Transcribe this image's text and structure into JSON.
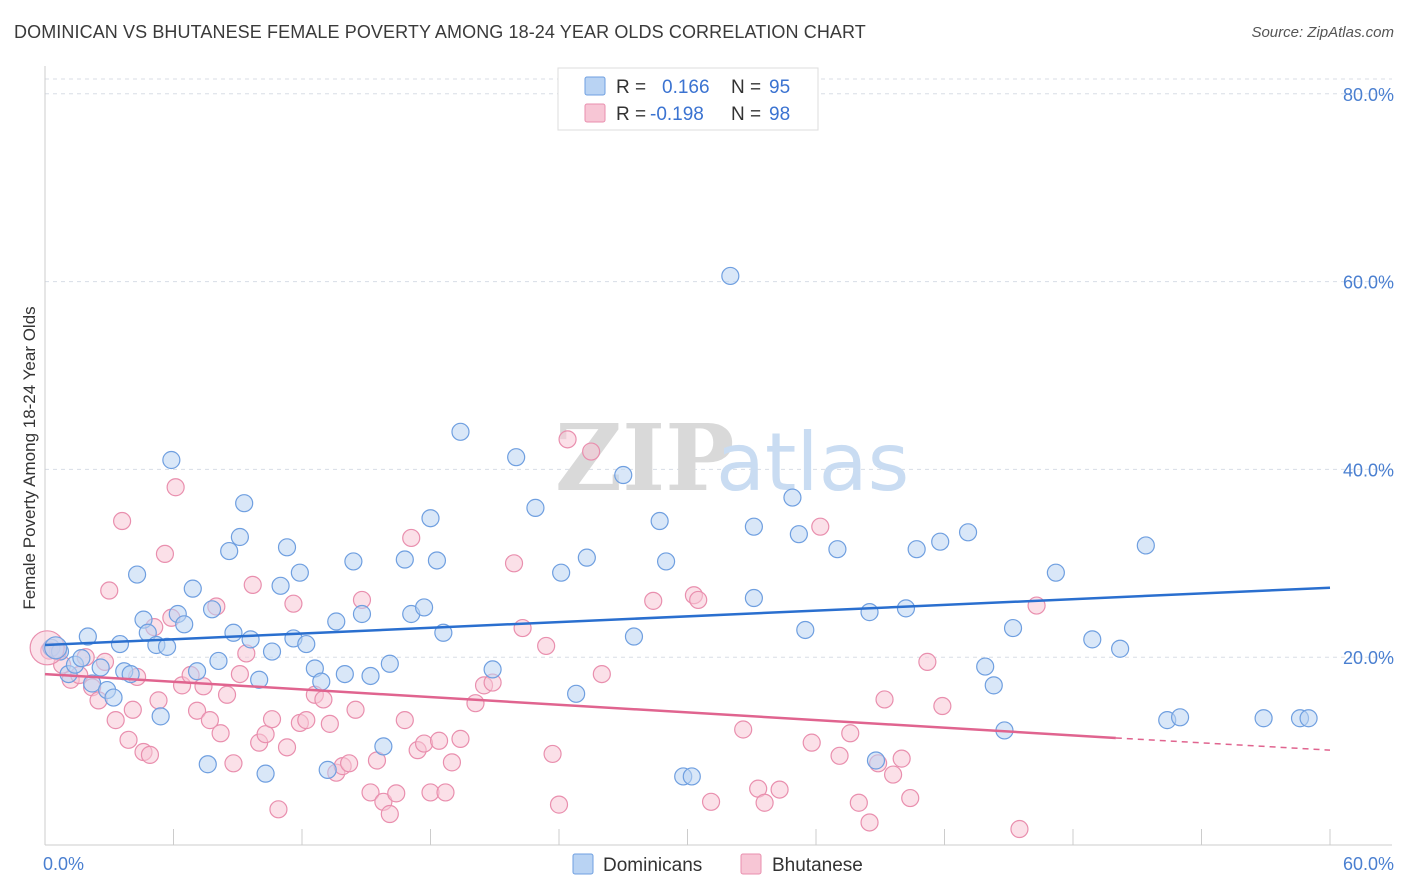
{
  "title": "DOMINICAN VS BHUTANESE FEMALE POVERTY AMONG 18-24 YEAR OLDS CORRELATION CHART",
  "source": "Source: ZipAtlas.com",
  "watermark": {
    "zip": "ZIP",
    "atlas": "atlas"
  },
  "legend": {
    "rows": [
      {
        "r_label": "R =",
        "r_value": "0.166",
        "n_label": "N =",
        "n_value": "95"
      },
      {
        "r_label": "R =",
        "r_value": "-0.198",
        "n_label": "N =",
        "n_value": "98"
      }
    ]
  },
  "bottom_legend": [
    "Dominicans",
    "Bhutanese"
  ],
  "colors": {
    "dominicans_fill": "#b9d3f3",
    "dominicans_stroke": "#6f9fe0",
    "dominicans_line": "#2a6fcf",
    "bhutanese_fill": "#f7c6d5",
    "bhutanese_stroke": "#e98fae",
    "bhutanese_line": "#e0648f",
    "tick_label": "#4a7fd0",
    "grid": "#d8dde6"
  },
  "chart_data": {
    "type": "scatter",
    "title": "DOMINICAN VS BHUTANESE FEMALE POVERTY AMONG 18-24 YEAR OLDS CORRELATION CHART",
    "xlabel": "",
    "ylabel": "Female Poverty Among 18-24 Year Olds",
    "xlim": [
      0,
      60
    ],
    "ylim": [
      0,
      82
    ],
    "x_tick_labels": [
      "0.0%",
      "60.0%"
    ],
    "y_tick_labels": [
      "20.0%",
      "40.0%",
      "60.0%",
      "80.0%"
    ],
    "y_ticks": [
      20,
      40,
      60,
      80
    ],
    "grid": true,
    "series": [
      {
        "name": "Dominicans",
        "r": 0.166,
        "n": 95,
        "trend": {
          "x": [
            0,
            60
          ],
          "y": [
            21.3,
            27.4
          ]
        },
        "points": [
          [
            0.3,
            21.0
          ],
          [
            0.7,
            20.6
          ],
          [
            1.1,
            18.2
          ],
          [
            1.4,
            19.2
          ],
          [
            1.7,
            19.9
          ],
          [
            2.0,
            22.2
          ],
          [
            2.2,
            17.2
          ],
          [
            2.6,
            18.9
          ],
          [
            2.9,
            16.5
          ],
          [
            3.2,
            15.7
          ],
          [
            3.5,
            21.4
          ],
          [
            3.7,
            18.5
          ],
          [
            4.0,
            18.2
          ],
          [
            4.3,
            28.8
          ],
          [
            4.6,
            24.0
          ],
          [
            4.8,
            22.6
          ],
          [
            5.2,
            21.3
          ],
          [
            5.4,
            13.7
          ],
          [
            5.7,
            21.1
          ],
          [
            5.9,
            41.0
          ],
          [
            6.2,
            24.6
          ],
          [
            6.5,
            23.5
          ],
          [
            6.9,
            27.3
          ],
          [
            7.1,
            18.5
          ],
          [
            7.6,
            8.6
          ],
          [
            7.8,
            25.1
          ],
          [
            8.1,
            19.6
          ],
          [
            8.6,
            31.3
          ],
          [
            8.8,
            22.6
          ],
          [
            9.1,
            32.8
          ],
          [
            9.3,
            36.4
          ],
          [
            9.6,
            21.9
          ],
          [
            10.0,
            17.6
          ],
          [
            10.3,
            7.6
          ],
          [
            10.6,
            20.6
          ],
          [
            11.0,
            27.6
          ],
          [
            11.3,
            31.7
          ],
          [
            11.6,
            22.0
          ],
          [
            11.9,
            29.0
          ],
          [
            12.2,
            21.4
          ],
          [
            12.6,
            18.8
          ],
          [
            12.9,
            17.4
          ],
          [
            13.2,
            8.0
          ],
          [
            13.6,
            23.8
          ],
          [
            14.0,
            18.2
          ],
          [
            14.4,
            30.2
          ],
          [
            14.8,
            24.6
          ],
          [
            15.2,
            18.0
          ],
          [
            15.8,
            10.5
          ],
          [
            16.1,
            19.3
          ],
          [
            16.8,
            30.4
          ],
          [
            17.1,
            24.6
          ],
          [
            17.7,
            25.3
          ],
          [
            18.0,
            34.8
          ],
          [
            18.3,
            30.3
          ],
          [
            18.6,
            22.6
          ],
          [
            19.4,
            44.0
          ],
          [
            20.9,
            18.7
          ],
          [
            22.0,
            41.3
          ],
          [
            22.9,
            35.9
          ],
          [
            24.1,
            29.0
          ],
          [
            24.8,
            16.1
          ],
          [
            25.3,
            30.6
          ],
          [
            27.0,
            39.4
          ],
          [
            27.5,
            22.2
          ],
          [
            28.7,
            34.5
          ],
          [
            29.0,
            30.2
          ],
          [
            29.8,
            7.3
          ],
          [
            30.2,
            7.3
          ],
          [
            32.0,
            60.6
          ],
          [
            33.1,
            33.9
          ],
          [
            33.1,
            26.3
          ],
          [
            34.9,
            37.0
          ],
          [
            35.2,
            33.1
          ],
          [
            35.5,
            22.9
          ],
          [
            37.0,
            31.5
          ],
          [
            38.5,
            24.8
          ],
          [
            38.8,
            9.0
          ],
          [
            40.2,
            25.2
          ],
          [
            40.7,
            31.5
          ],
          [
            41.8,
            32.3
          ],
          [
            43.1,
            33.3
          ],
          [
            43.9,
            19.0
          ],
          [
            44.3,
            17.0
          ],
          [
            44.8,
            12.2
          ],
          [
            45.2,
            23.1
          ],
          [
            47.2,
            29.0
          ],
          [
            48.9,
            21.9
          ],
          [
            50.2,
            20.9
          ],
          [
            51.4,
            31.9
          ],
          [
            52.4,
            13.3
          ],
          [
            53.0,
            13.6
          ],
          [
            56.9,
            13.5
          ],
          [
            58.6,
            13.5
          ],
          [
            59.0,
            13.5
          ]
        ]
      },
      {
        "name": "Bhutanese",
        "r": -0.198,
        "n": 98,
        "trend": {
          "x": [
            0,
            50
          ],
          "y": [
            18.2,
            11.4
          ]
        },
        "trend_dashed": {
          "x": [
            50,
            60
          ],
          "y": [
            11.4,
            10.1
          ]
        },
        "points": [
          [
            0.2,
            20.7
          ],
          [
            0.6,
            20.6
          ],
          [
            0.8,
            19.2
          ],
          [
            1.2,
            17.6
          ],
          [
            1.6,
            18.1
          ],
          [
            1.9,
            20.0
          ],
          [
            2.2,
            16.8
          ],
          [
            2.5,
            15.4
          ],
          [
            2.8,
            19.5
          ],
          [
            3.0,
            27.1
          ],
          [
            3.3,
            13.3
          ],
          [
            3.6,
            34.5
          ],
          [
            3.9,
            11.2
          ],
          [
            4.1,
            14.4
          ],
          [
            4.3,
            17.9
          ],
          [
            4.6,
            9.9
          ],
          [
            4.9,
            9.6
          ],
          [
            5.1,
            23.2
          ],
          [
            5.3,
            15.4
          ],
          [
            5.6,
            31.0
          ],
          [
            5.9,
            24.2
          ],
          [
            6.1,
            38.1
          ],
          [
            6.4,
            17.0
          ],
          [
            6.8,
            18.1
          ],
          [
            7.1,
            14.3
          ],
          [
            7.4,
            16.9
          ],
          [
            7.7,
            13.3
          ],
          [
            8.0,
            25.4
          ],
          [
            8.2,
            11.9
          ],
          [
            8.5,
            16.0
          ],
          [
            8.8,
            8.7
          ],
          [
            9.1,
            18.2
          ],
          [
            9.4,
            20.4
          ],
          [
            9.7,
            27.7
          ],
          [
            10.0,
            10.9
          ],
          [
            10.3,
            11.8
          ],
          [
            10.6,
            13.4
          ],
          [
            10.9,
            3.8
          ],
          [
            11.3,
            10.4
          ],
          [
            11.6,
            25.7
          ],
          [
            11.9,
            13.0
          ],
          [
            12.2,
            13.3
          ],
          [
            12.6,
            16.0
          ],
          [
            13.0,
            15.5
          ],
          [
            13.3,
            12.9
          ],
          [
            13.6,
            7.7
          ],
          [
            13.9,
            8.4
          ],
          [
            14.2,
            8.7
          ],
          [
            14.5,
            14.4
          ],
          [
            14.8,
            26.1
          ],
          [
            15.2,
            5.6
          ],
          [
            15.5,
            9.0
          ],
          [
            15.8,
            4.6
          ],
          [
            16.1,
            3.3
          ],
          [
            16.4,
            5.5
          ],
          [
            16.8,
            13.3
          ],
          [
            17.1,
            32.7
          ],
          [
            17.4,
            10.1
          ],
          [
            17.7,
            10.8
          ],
          [
            18.0,
            5.6
          ],
          [
            18.4,
            11.1
          ],
          [
            18.7,
            5.6
          ],
          [
            19.0,
            8.8
          ],
          [
            19.4,
            11.3
          ],
          [
            20.1,
            15.1
          ],
          [
            20.5,
            17.0
          ],
          [
            20.9,
            17.3
          ],
          [
            21.9,
            30.0
          ],
          [
            22.3,
            23.1
          ],
          [
            23.4,
            21.2
          ],
          [
            23.7,
            9.7
          ],
          [
            24.0,
            4.3
          ],
          [
            24.4,
            43.2
          ],
          [
            25.5,
            41.9
          ],
          [
            26.0,
            18.2
          ],
          [
            28.4,
            26.0
          ],
          [
            30.3,
            26.6
          ],
          [
            30.5,
            26.1
          ],
          [
            31.1,
            4.6
          ],
          [
            32.6,
            12.3
          ],
          [
            33.3,
            6.0
          ],
          [
            33.6,
            4.5
          ],
          [
            34.3,
            5.9
          ],
          [
            35.8,
            10.9
          ],
          [
            36.2,
            33.9
          ],
          [
            37.1,
            9.5
          ],
          [
            37.6,
            11.9
          ],
          [
            38.0,
            4.5
          ],
          [
            38.5,
            2.4
          ],
          [
            38.9,
            8.7
          ],
          [
            39.2,
            15.5
          ],
          [
            39.6,
            7.5
          ],
          [
            40.0,
            9.2
          ],
          [
            40.4,
            5.0
          ],
          [
            41.2,
            19.5
          ],
          [
            41.9,
            14.8
          ],
          [
            45.5,
            1.7
          ],
          [
            46.3,
            25.5
          ]
        ]
      }
    ]
  }
}
